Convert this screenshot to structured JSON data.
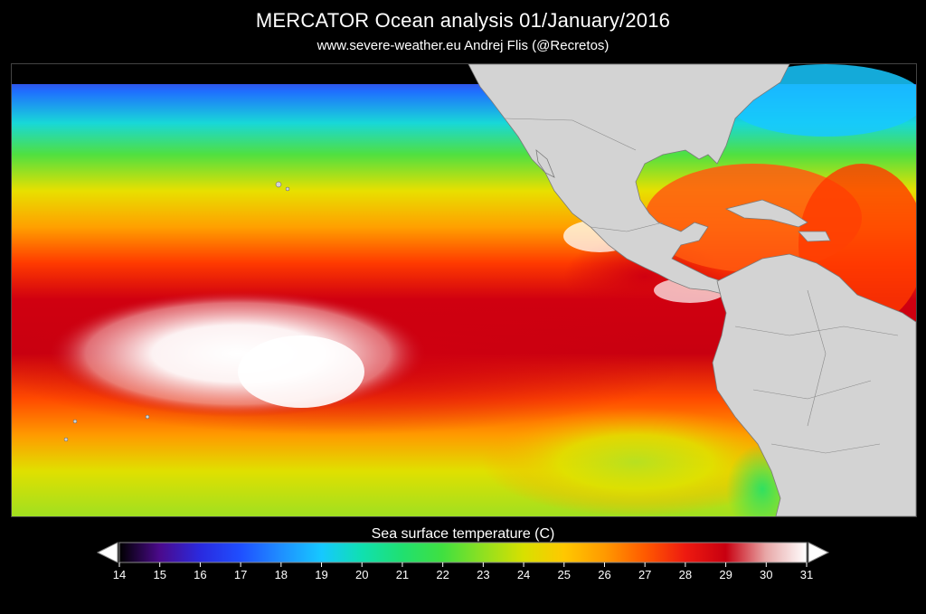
{
  "header": {
    "title": "MERCATOR Ocean analysis   01/January/2016",
    "subtitle": "www.severe-weather.eu   Andrej Flis (@Recretos)"
  },
  "legend": {
    "title": "Sea surface temperature (C)",
    "min": 14,
    "max": 31,
    "ticks": [
      "14",
      "15",
      "16",
      "17",
      "18",
      "19",
      "20",
      "21",
      "22",
      "23",
      "24",
      "25",
      "26",
      "27",
      "28",
      "29",
      "30",
      "31"
    ],
    "colors": {
      "14": "#000000",
      "15": "#4b0a8c",
      "16": "#2a2adf",
      "17": "#1f4fff",
      "18": "#1f8fff",
      "19": "#16c8ff",
      "20": "#10e0b0",
      "21": "#20e070",
      "22": "#40e040",
      "23": "#90e020",
      "24": "#d8e000",
      "25": "#ffc800",
      "26": "#ff9a00",
      "27": "#ff5a00",
      "28": "#ee1a10",
      "29": "#c80010",
      "30": "#e8a8a8",
      "31": "#ffffff"
    }
  },
  "map": {
    "land_color": "#d3d3d3",
    "border_color": "#7a7a7a"
  }
}
